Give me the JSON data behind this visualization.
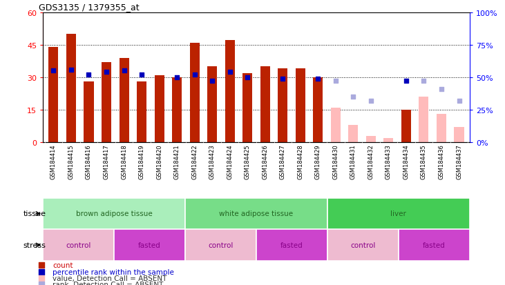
{
  "title": "GDS3135 / 1379355_at",
  "samples": [
    "GSM184414",
    "GSM184415",
    "GSM184416",
    "GSM184417",
    "GSM184418",
    "GSM184419",
    "GSM184420",
    "GSM184421",
    "GSM184422",
    "GSM184423",
    "GSM184424",
    "GSM184425",
    "GSM184426",
    "GSM184427",
    "GSM184428",
    "GSM184429",
    "GSM184430",
    "GSM184431",
    "GSM184432",
    "GSM184433",
    "GSM184434",
    "GSM184435",
    "GSM184436",
    "GSM184437"
  ],
  "count_present": [
    44,
    50,
    28,
    37,
    39,
    28,
    31,
    30,
    46,
    35,
    47,
    32,
    35,
    34,
    34,
    30,
    null,
    null,
    null,
    null,
    15,
    null,
    null,
    null
  ],
  "count_absent": [
    null,
    null,
    null,
    null,
    null,
    null,
    null,
    null,
    null,
    null,
    null,
    null,
    null,
    null,
    null,
    null,
    16,
    8,
    3,
    2,
    null,
    21,
    13,
    7
  ],
  "pct_present": [
    55,
    56,
    52,
    54,
    55,
    52,
    null,
    50,
    52,
    47,
    54,
    50,
    null,
    49,
    null,
    49,
    null,
    null,
    null,
    null,
    47,
    null,
    null,
    null
  ],
  "pct_absent": [
    null,
    null,
    null,
    null,
    null,
    null,
    null,
    null,
    null,
    null,
    null,
    null,
    null,
    null,
    null,
    null,
    47,
    35,
    32,
    null,
    null,
    47,
    41,
    32
  ],
  "ylim_left": [
    0,
    60
  ],
  "ylim_right": [
    0,
    100
  ],
  "yticks_left": [
    0,
    15,
    30,
    45,
    60
  ],
  "yticks_right": [
    0,
    25,
    50,
    75,
    100
  ],
  "bar_color_present": "#bb2200",
  "bar_color_absent": "#ffbbbb",
  "dot_color_present": "#0000bb",
  "dot_color_absent": "#aaaadd",
  "xtick_bg": "#d0d0d0",
  "tissue_segments": [
    {
      "label": "brown adipose tissue",
      "start": 0,
      "end": 8,
      "color": "#aaeebb"
    },
    {
      "label": "white adipose tissue",
      "start": 8,
      "end": 16,
      "color": "#77dd88"
    },
    {
      "label": "liver",
      "start": 16,
      "end": 24,
      "color": "#44cc55"
    }
  ],
  "stress_segments": [
    {
      "label": "control",
      "start": 0,
      "end": 4,
      "color": "#eebbd0"
    },
    {
      "label": "fasted",
      "start": 4,
      "end": 8,
      "color": "#cc44cc"
    },
    {
      "label": "control",
      "start": 8,
      "end": 12,
      "color": "#eebbd0"
    },
    {
      "label": "fasted",
      "start": 12,
      "end": 16,
      "color": "#cc44cc"
    },
    {
      "label": "control",
      "start": 16,
      "end": 20,
      "color": "#eebbd0"
    },
    {
      "label": "fasted",
      "start": 20,
      "end": 24,
      "color": "#cc44cc"
    }
  ],
  "tissue_text_color": "#226622",
  "stress_text_color": "#880088",
  "legend_items": [
    {
      "color": "#bb2200",
      "label": "count",
      "text_color": "#cc0000"
    },
    {
      "color": "#0000bb",
      "label": "percentile rank within the sample",
      "text_color": "#0000cc"
    },
    {
      "color": "#ffbbbb",
      "label": "value, Detection Call = ABSENT",
      "text_color": "#333333"
    },
    {
      "color": "#aaaadd",
      "label": "rank, Detection Call = ABSENT",
      "text_color": "#333333"
    }
  ]
}
